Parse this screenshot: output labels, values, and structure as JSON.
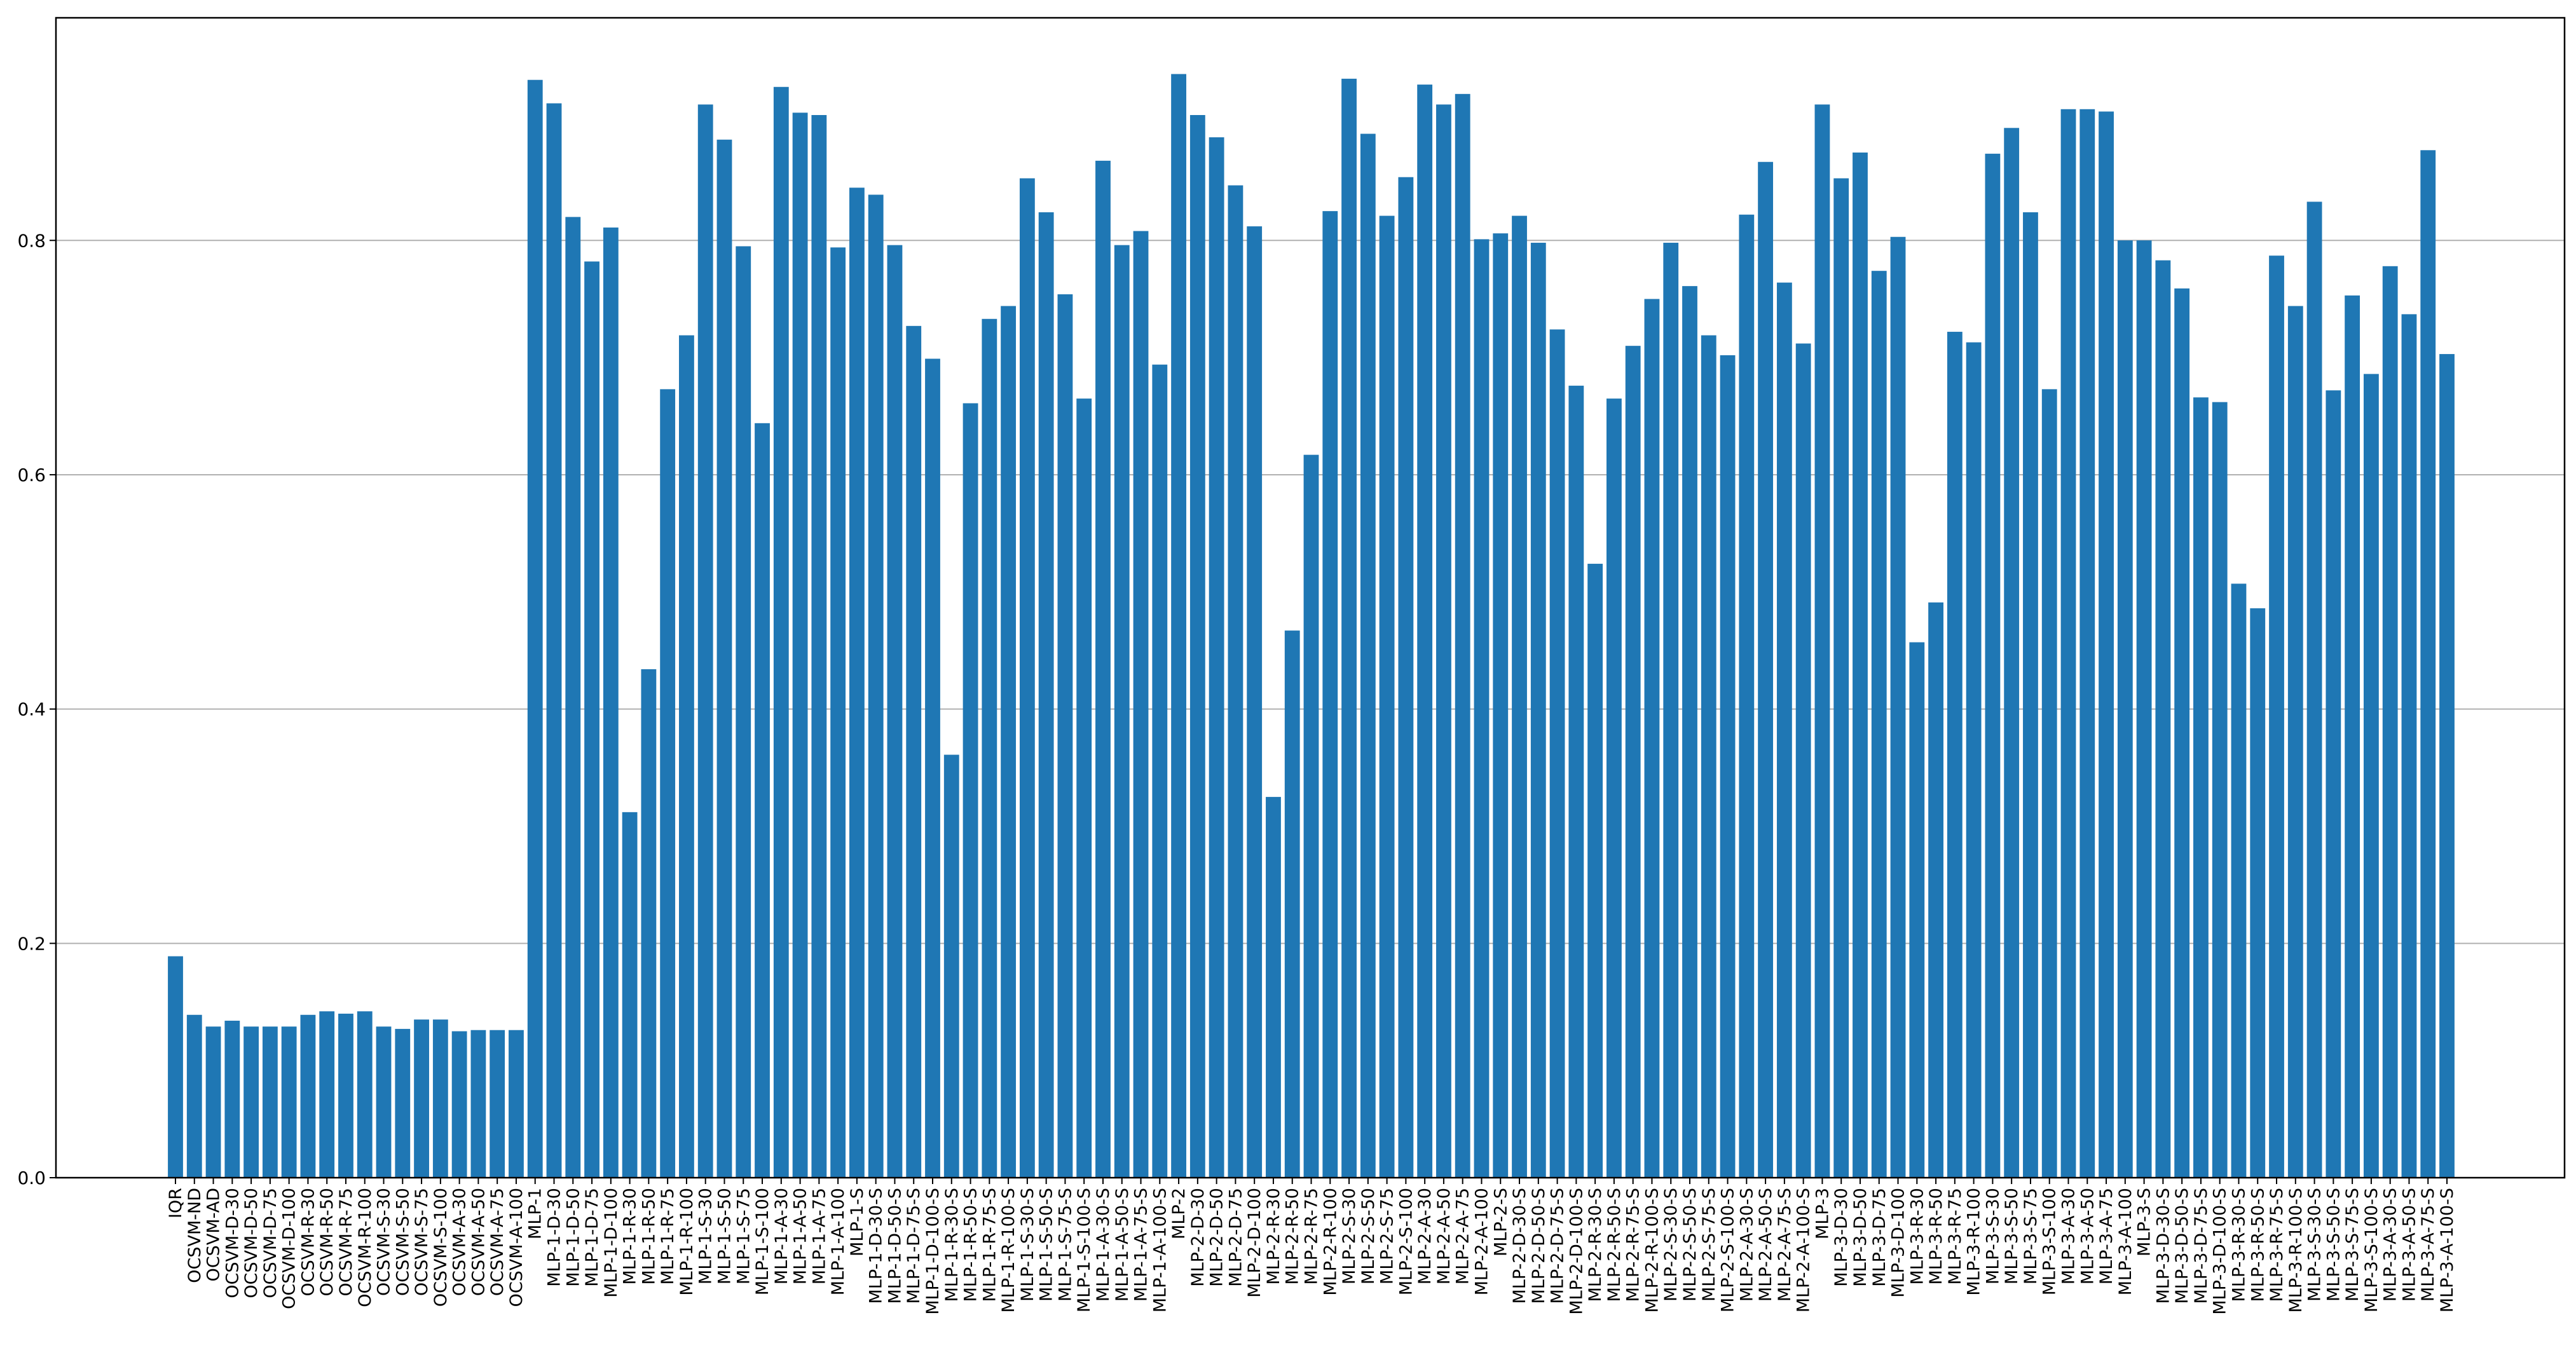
{
  "chart_data": {
    "type": "bar",
    "title": "",
    "xlabel": "",
    "ylabel": "",
    "ylim": [
      0,
      0.99
    ],
    "yticks": [
      0.0,
      0.2,
      0.4,
      0.6,
      0.8
    ],
    "ytick_labels": [
      "0.0",
      "0.2",
      "0.4",
      "0.6",
      "0.8"
    ],
    "grid": "y-major",
    "bar_color": "#1f77b4",
    "grid_color": "#b0b0b0",
    "categories": [
      "IQR",
      "OCSVM-ND",
      "OCSVM-AD",
      "OCSVM-D-30",
      "OCSVM-D-50",
      "OCSVM-D-75",
      "OCSVM-D-100",
      "OCSVM-R-30",
      "OCSVM-R-50",
      "OCSVM-R-75",
      "OCSVM-R-100",
      "OCSVM-S-30",
      "OCSVM-S-50",
      "OCSVM-S-75",
      "OCSVM-S-100",
      "OCSVM-A-30",
      "OCSVM-A-50",
      "OCSVM-A-75",
      "OCSVM-A-100",
      "MLP-1",
      "MLP-1-D-30",
      "MLP-1-D-50",
      "MLP-1-D-75",
      "MLP-1-D-100",
      "MLP-1-R-30",
      "MLP-1-R-50",
      "MLP-1-R-75",
      "MLP-1-R-100",
      "MLP-1-S-30",
      "MLP-1-S-50",
      "MLP-1-S-75",
      "MLP-1-S-100",
      "MLP-1-A-30",
      "MLP-1-A-50",
      "MLP-1-A-75",
      "MLP-1-A-100",
      "MLP-1-S",
      "MLP-1-D-30-S",
      "MLP-1-D-50-S",
      "MLP-1-D-75-S",
      "MLP-1-D-100-S",
      "MLP-1-R-30-S",
      "MLP-1-R-50-S",
      "MLP-1-R-75-S",
      "MLP-1-R-100-S",
      "MLP-1-S-30-S",
      "MLP-1-S-50-S",
      "MLP-1-S-75-S",
      "MLP-1-S-100-S",
      "MLP-1-A-30-S",
      "MLP-1-A-50-S",
      "MLP-1-A-75-S",
      "MLP-1-A-100-S",
      "MLP-2",
      "MLP-2-D-30",
      "MLP-2-D-50",
      "MLP-2-D-75",
      "MLP-2-D-100",
      "MLP-2-R-30",
      "MLP-2-R-50",
      "MLP-2-R-75",
      "MLP-2-R-100",
      "MLP-2-S-30",
      "MLP-2-S-50",
      "MLP-2-S-75",
      "MLP-2-S-100",
      "MLP-2-A-30",
      "MLP-2-A-50",
      "MLP-2-A-75",
      "MLP-2-A-100",
      "MLP-2-S",
      "MLP-2-D-30-S",
      "MLP-2-D-50-S",
      "MLP-2-D-75-S",
      "MLP-2-D-100-S",
      "MLP-2-R-30-S",
      "MLP-2-R-50-S",
      "MLP-2-R-75-S",
      "MLP-2-R-100-S",
      "MLP-2-S-30-S",
      "MLP-2-S-50-S",
      "MLP-2-S-75-S",
      "MLP-2-S-100-S",
      "MLP-2-A-30-S",
      "MLP-2-A-50-S",
      "MLP-2-A-75-S",
      "MLP-2-A-100-S",
      "MLP-3",
      "MLP-3-D-30",
      "MLP-3-D-50",
      "MLP-3-D-75",
      "MLP-3-D-100",
      "MLP-3-R-30",
      "MLP-3-R-50",
      "MLP-3-R-75",
      "MLP-3-R-100",
      "MLP-3-S-30",
      "MLP-3-S-50",
      "MLP-3-S-75",
      "MLP-3-S-100",
      "MLP-3-A-30",
      "MLP-3-A-50",
      "MLP-3-A-75",
      "MLP-3-A-100",
      "MLP-3-S",
      "MLP-3-D-30-S",
      "MLP-3-D-50-S",
      "MLP-3-D-75-S",
      "MLP-3-D-100-S",
      "MLP-3-R-30-S",
      "MLP-3-R-50-S",
      "MLP-3-R-75-S",
      "MLP-3-R-100-S",
      "MLP-3-S-30-S",
      "MLP-3-S-50-S",
      "MLP-3-S-75-S",
      "MLP-3-S-100-S",
      "MLP-3-A-30-S",
      "MLP-3-A-50-S",
      "MLP-3-A-75-S",
      "MLP-3-A-100-S"
    ],
    "values": [
      0.189,
      0.139,
      0.129,
      0.134,
      0.129,
      0.129,
      0.129,
      0.139,
      0.142,
      0.14,
      0.142,
      0.129,
      0.127,
      0.135,
      0.135,
      0.125,
      0.126,
      0.126,
      0.126,
      0.937,
      0.917,
      0.82,
      0.782,
      0.811,
      0.312,
      0.434,
      0.673,
      0.719,
      0.916,
      0.886,
      0.795,
      0.644,
      0.931,
      0.909,
      0.907,
      0.794,
      0.845,
      0.839,
      0.796,
      0.727,
      0.699,
      0.361,
      0.661,
      0.733,
      0.744,
      0.853,
      0.824,
      0.754,
      0.665,
      0.868,
      0.796,
      0.808,
      0.694,
      0.942,
      0.907,
      0.888,
      0.847,
      0.812,
      0.325,
      0.467,
      0.617,
      0.825,
      0.938,
      0.891,
      0.821,
      0.854,
      0.933,
      0.916,
      0.925,
      0.801,
      0.806,
      0.821,
      0.798,
      0.724,
      0.676,
      0.524,
      0.665,
      0.71,
      0.75,
      0.798,
      0.761,
      0.719,
      0.702,
      0.822,
      0.867,
      0.764,
      0.712,
      0.916,
      0.853,
      0.875,
      0.774,
      0.803,
      0.457,
      0.491,
      0.722,
      0.713,
      0.874,
      0.896,
      0.824,
      0.673,
      0.912,
      0.912,
      0.91,
      0.8,
      0.8,
      0.783,
      0.759,
      0.666,
      0.662,
      0.507,
      0.486,
      0.787,
      0.744,
      0.833,
      0.672,
      0.753,
      0.686,
      0.778,
      0.737,
      0.877,
      0.703
    ]
  }
}
